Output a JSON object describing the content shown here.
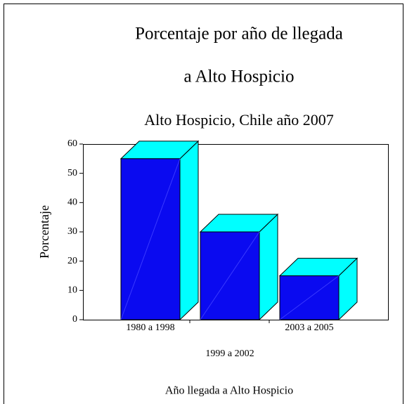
{
  "chart_data": {
    "type": "bar3d",
    "title": [
      "Porcentaje por año de llegada",
      "a Alto Hospicio"
    ],
    "subtitle": "Alto Hospicio, Chile año 2007",
    "y_label": "Porcentaje",
    "x_label": "Año llegada a Alto Hospicio",
    "categories": [
      "1980 a 1998",
      "1999 a 2002",
      "2003 a 2005"
    ],
    "values": [
      55,
      30,
      15
    ],
    "color": "#0a0af0",
    "side_color": "#00ffff",
    "ylim": [
      0,
      60
    ],
    "yticks": [
      0,
      10,
      20,
      30,
      40,
      50,
      60
    ]
  }
}
